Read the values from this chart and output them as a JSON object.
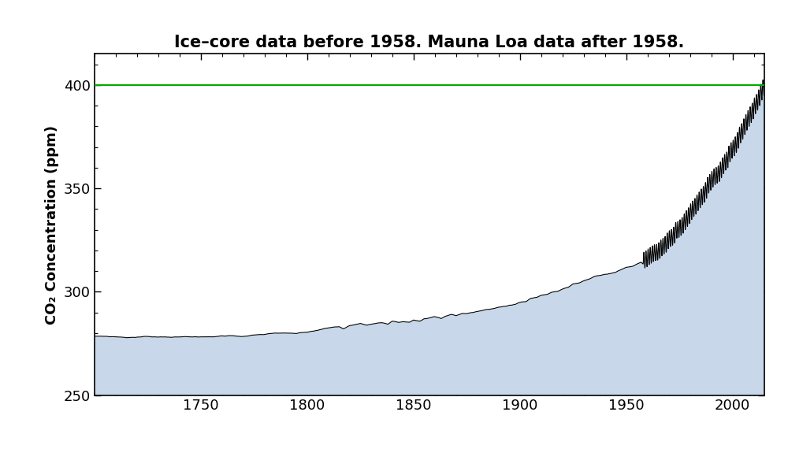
{
  "title": "Ice–core data before 1958. Mauna Loa data after 1958.",
  "ylabel": "CO₂ Concentration (ppm)",
  "xlim": [
    1700,
    2015
  ],
  "ylim": [
    250,
    415
  ],
  "yticks": [
    250,
    300,
    350,
    400
  ],
  "xticks": [
    1750,
    1800,
    1850,
    1900,
    1950,
    2000
  ],
  "hline_y": 400,
  "hline_color": "#00aa00",
  "fill_color": "#c8d8ea",
  "fill_alpha": 1.0,
  "line_color": "#000000",
  "line_width": 0.8,
  "background_color": "#ffffff",
  "title_fontsize": 15,
  "ylabel_fontsize": 13,
  "tick_fontsize": 13,
  "ice_core_points": [
    [
      1700,
      278.5
    ],
    [
      1705,
      278.5
    ],
    [
      1710,
      278.3
    ],
    [
      1715,
      278.0
    ],
    [
      1720,
      278.2
    ],
    [
      1725,
      278.5
    ],
    [
      1730,
      278.4
    ],
    [
      1735,
      278.6
    ],
    [
      1740,
      278.5
    ],
    [
      1745,
      278.8
    ],
    [
      1750,
      278.5
    ],
    [
      1755,
      278.5
    ],
    [
      1760,
      279.0
    ],
    [
      1765,
      279.2
    ],
    [
      1770,
      279.0
    ],
    [
      1775,
      279.5
    ],
    [
      1780,
      279.8
    ],
    [
      1785,
      280.5
    ],
    [
      1790,
      280.2
    ],
    [
      1795,
      280.0
    ],
    [
      1800,
      280.5
    ],
    [
      1805,
      281.5
    ],
    [
      1810,
      282.5
    ],
    [
      1815,
      283.0
    ],
    [
      1817,
      282.0
    ],
    [
      1820,
      283.5
    ],
    [
      1825,
      284.5
    ],
    [
      1828,
      283.5
    ],
    [
      1830,
      284.0
    ],
    [
      1835,
      285.0
    ],
    [
      1838,
      284.5
    ],
    [
      1840,
      286.0
    ],
    [
      1843,
      285.5
    ],
    [
      1845,
      286.0
    ],
    [
      1848,
      285.8
    ],
    [
      1850,
      287.0
    ],
    [
      1853,
      286.5
    ],
    [
      1855,
      287.5
    ],
    [
      1858,
      288.0
    ],
    [
      1860,
      288.5
    ],
    [
      1863,
      287.5
    ],
    [
      1865,
      288.5
    ],
    [
      1868,
      289.5
    ],
    [
      1870,
      289.0
    ],
    [
      1873,
      290.0
    ],
    [
      1875,
      290.0
    ],
    [
      1878,
      290.5
    ],
    [
      1880,
      291.0
    ],
    [
      1883,
      291.5
    ],
    [
      1885,
      292.0
    ],
    [
      1888,
      292.5
    ],
    [
      1890,
      293.0
    ],
    [
      1893,
      293.5
    ],
    [
      1895,
      294.0
    ],
    [
      1898,
      294.5
    ],
    [
      1900,
      295.5
    ],
    [
      1903,
      296.0
    ],
    [
      1905,
      297.5
    ],
    [
      1908,
      298.0
    ],
    [
      1910,
      299.0
    ],
    [
      1913,
      299.5
    ],
    [
      1915,
      300.5
    ],
    [
      1918,
      301.0
    ],
    [
      1920,
      302.0
    ],
    [
      1923,
      303.0
    ],
    [
      1925,
      304.5
    ],
    [
      1928,
      305.0
    ],
    [
      1930,
      306.0
    ],
    [
      1933,
      307.0
    ],
    [
      1935,
      308.0
    ],
    [
      1938,
      308.5
    ],
    [
      1940,
      309.0
    ],
    [
      1943,
      309.5
    ],
    [
      1945,
      310.0
    ],
    [
      1948,
      311.5
    ],
    [
      1950,
      312.5
    ],
    [
      1953,
      313.0
    ],
    [
      1955,
      314.0
    ],
    [
      1957,
      315.0
    ]
  ],
  "mauna_loa_annual": {
    "1958": 315.3,
    "1959": 315.9,
    "1960": 316.9,
    "1961": 317.6,
    "1962": 318.4,
    "1963": 318.9,
    "1964": 319.1,
    "1965": 319.9,
    "1966": 321.2,
    "1967": 322.1,
    "1968": 322.9,
    "1969": 324.6,
    "1970": 325.7,
    "1971": 326.3,
    "1972": 327.4,
    "1973": 329.7,
    "1974": 330.1,
    "1975": 331.0,
    "1976": 332.1,
    "1977": 333.8,
    "1978": 335.4,
    "1979": 336.8,
    "1980": 338.7,
    "1981": 340.1,
    "1982": 341.3,
    "1983": 343.0,
    "1984": 344.4,
    "1985": 345.9,
    "1986": 347.1,
    "1987": 349.0,
    "1988": 351.5,
    "1989": 352.9,
    "1990": 354.4,
    "1991": 355.6,
    "1992": 356.3,
    "1993": 357.1,
    "1994": 358.9,
    "1995": 360.9,
    "1996": 362.6,
    "1997": 363.8,
    "1998": 366.6,
    "1999": 368.3,
    "2000": 369.5,
    "2001": 371.1,
    "2002": 373.2,
    "2003": 375.8,
    "2004": 377.5,
    "2005": 379.8,
    "2006": 381.9,
    "2007": 383.8,
    "2008": 385.6,
    "2009": 387.4,
    "2010": 389.9,
    "2011": 391.6,
    "2012": 393.8,
    "2013": 396.5,
    "2014": 398.6
  }
}
